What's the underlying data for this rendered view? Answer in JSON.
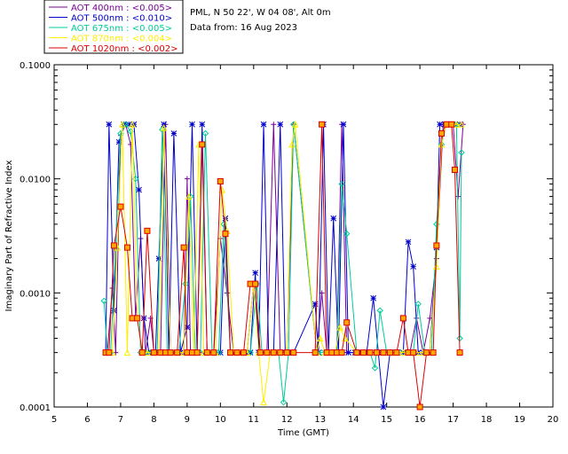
{
  "chart_data": {
    "type": "line",
    "yscale": "log",
    "title_lines": [
      "PML, N 50 22', W 04 08', Alt 0m",
      "Data from: 16 Aug 2023"
    ],
    "xlabel": "Time (GMT)",
    "ylabel": "Imaginary Part of Refractive Index",
    "xlim": [
      5,
      20
    ],
    "ylim": [
      0.0001,
      0.1
    ],
    "x_ticks": [
      5,
      6,
      7,
      8,
      9,
      10,
      11,
      12,
      13,
      14,
      15,
      16,
      17,
      18,
      19,
      20
    ],
    "x_tick_labels": [
      "5",
      "6",
      "7",
      "8",
      "9",
      "10",
      "11",
      "12",
      "13",
      "14",
      "15",
      "16",
      "17",
      "18",
      "19",
      "20"
    ],
    "y_ticks": [
      0.0001,
      0.001,
      0.01,
      0.1
    ],
    "y_tick_labels": [
      "0.0001",
      "0.0010",
      "0.0100",
      "0.1000"
    ],
    "series": [
      {
        "name": "AOT  400nm : <0.005>",
        "color": "#7a0099",
        "marker": "plus",
        "x": [
          6.6,
          6.75,
          6.85,
          7.0,
          7.15,
          7.3,
          7.45,
          7.6,
          7.75,
          7.9,
          8.0,
          8.2,
          8.35,
          8.5,
          8.7,
          8.9,
          9.0,
          9.1,
          9.2,
          9.35,
          9.5,
          9.65,
          9.8,
          10.0,
          10.2,
          10.4,
          10.6,
          10.8,
          11.0,
          11.2,
          11.4,
          11.6,
          11.8,
          12.0,
          12.2,
          12.9,
          13.05,
          13.2,
          13.35,
          13.5,
          13.65,
          13.8,
          14.1,
          14.3,
          14.5,
          14.7,
          14.9,
          15.1,
          15.3,
          15.5,
          15.7,
          15.9,
          16.1,
          16.3,
          16.5,
          16.7,
          16.85,
          17.0,
          17.15,
          17.3
        ],
        "y": [
          0.0003,
          0.0011,
          0.0003,
          0.024,
          0.03,
          0.02,
          0.0006,
          0.003,
          0.0003,
          0.0006,
          0.0003,
          0.0003,
          0.03,
          0.0003,
          0.0003,
          0.0003,
          0.01,
          0.0003,
          0.0003,
          0.0003,
          0.0003,
          0.0003,
          0.0003,
          0.003,
          0.001,
          0.0003,
          0.0003,
          0.0003,
          0.0012,
          0.0003,
          0.0003,
          0.03,
          0.0003,
          0.0003,
          0.03,
          0.0003,
          0.001,
          0.0003,
          0.0003,
          0.0003,
          0.03,
          0.0003,
          0.0003,
          0.0003,
          0.0003,
          0.0003,
          0.0003,
          0.0003,
          0.0003,
          0.0003,
          0.0003,
          0.0006,
          0.0003,
          0.0006,
          0.002,
          0.03,
          0.03,
          0.03,
          0.007,
          0.03
        ]
      },
      {
        "name": "AOT  500nm : <0.010>",
        "color": "#0000cc",
        "marker": "star",
        "x": [
          6.55,
          6.65,
          6.8,
          6.95,
          7.1,
          7.25,
          7.4,
          7.55,
          7.7,
          7.85,
          8.05,
          8.15,
          8.3,
          8.45,
          8.6,
          8.8,
          9.0,
          9.15,
          9.3,
          9.45,
          9.6,
          9.8,
          10.0,
          10.15,
          10.3,
          10.5,
          10.7,
          10.9,
          11.05,
          11.15,
          11.3,
          11.45,
          11.6,
          11.8,
          11.95,
          12.1,
          12.2,
          12.85,
          12.95,
          13.1,
          13.25,
          13.4,
          13.55,
          13.7,
          13.85,
          14.05,
          14.2,
          14.4,
          14.6,
          14.75,
          14.9,
          15.1,
          15.3,
          15.5,
          15.65,
          15.8,
          15.95,
          16.1,
          16.3,
          16.5,
          16.6,
          16.75,
          16.9,
          17.05,
          17.2
        ],
        "y": [
          0.0003,
          0.03,
          0.0007,
          0.021,
          0.03,
          0.03,
          0.03,
          0.008,
          0.0006,
          0.0003,
          0.0003,
          0.002,
          0.03,
          0.0003,
          0.025,
          0.0003,
          0.0005,
          0.03,
          0.0003,
          0.03,
          0.0003,
          0.0003,
          0.0003,
          0.0045,
          0.0003,
          0.0003,
          0.0003,
          0.0003,
          0.0015,
          0.0003,
          0.03,
          0.0003,
          0.0003,
          0.03,
          0.0003,
          0.0003,
          0.0003,
          0.0008,
          0.0003,
          0.03,
          0.0003,
          0.0045,
          0.0003,
          0.03,
          0.0003,
          0.0003,
          0.0003,
          0.0003,
          0.0009,
          0.0003,
          0.0001,
          0.0003,
          0.0003,
          0.0003,
          0.0028,
          0.0017,
          0.0003,
          0.0003,
          0.0003,
          0.0025,
          0.03,
          0.03,
          0.03,
          0.03,
          0.03
        ]
      },
      {
        "name": "AOT  675nm : <0.005>",
        "color": "#00cc99",
        "marker": "diamond",
        "x": [
          6.5,
          6.6,
          6.7,
          6.85,
          7.0,
          7.15,
          7.3,
          7.45,
          7.6,
          7.75,
          7.9,
          8.1,
          8.25,
          8.4,
          8.55,
          8.75,
          8.95,
          9.1,
          9.25,
          9.4,
          9.55,
          9.75,
          9.95,
          10.1,
          10.3,
          10.5,
          10.7,
          10.9,
          11.1,
          11.25,
          11.4,
          11.55,
          11.75,
          11.9,
          12.05,
          12.2,
          12.9,
          13.05,
          13.2,
          13.35,
          13.5,
          13.65,
          13.8,
          14.1,
          14.3,
          14.5,
          14.65,
          14.8,
          15.0,
          15.2,
          15.4,
          15.6,
          15.8,
          15.95,
          16.15,
          16.35,
          16.5,
          16.65,
          16.8,
          16.95,
          17.1,
          17.2,
          17.25
        ],
        "y": [
          0.00085,
          0.0003,
          0.0003,
          0.0025,
          0.025,
          0.03,
          0.026,
          0.01,
          0.0003,
          0.0003,
          0.0003,
          0.0003,
          0.027,
          0.0003,
          0.0003,
          0.0003,
          0.0012,
          0.007,
          0.0003,
          0.0003,
          0.025,
          0.0003,
          0.0003,
          0.004,
          0.0003,
          0.0003,
          0.0003,
          0.0003,
          0.0012,
          0.0003,
          0.0003,
          0.0003,
          0.0003,
          0.00011,
          0.0003,
          0.03,
          0.0003,
          0.0003,
          0.0003,
          0.0003,
          0.0003,
          0.009,
          0.0033,
          0.0003,
          0.0003,
          0.0003,
          0.00022,
          0.0007,
          0.0003,
          0.0003,
          0.0003,
          0.0003,
          0.0003,
          0.0008,
          0.0003,
          0.0003,
          0.004,
          0.02,
          0.03,
          0.03,
          0.03,
          0.0004,
          0.017
        ]
      },
      {
        "name": "AOT  870nm : <0.004>",
        "color": "#ffee00",
        "marker": "triangle",
        "x": [
          6.6,
          6.75,
          6.9,
          7.05,
          7.2,
          7.35,
          7.5,
          7.65,
          7.8,
          8.0,
          8.15,
          8.3,
          8.5,
          8.7,
          8.9,
          9.05,
          9.2,
          9.35,
          9.5,
          9.65,
          9.85,
          10.05,
          10.2,
          10.4,
          10.6,
          10.8,
          11.0,
          11.15,
          11.3,
          11.5,
          11.7,
          11.85,
          12.0,
          12.15,
          12.25,
          12.9,
          13.0,
          13.15,
          13.3,
          13.45,
          13.6,
          13.75,
          14.1,
          14.3,
          14.5,
          14.7,
          14.9,
          15.1,
          15.3,
          15.5,
          15.7,
          15.9,
          16.1,
          16.3,
          16.5,
          16.65,
          16.8,
          16.95,
          17.1,
          17.25
        ],
        "y": [
          0.0003,
          0.0003,
          0.0025,
          0.03,
          0.0003,
          0.03,
          0.0006,
          0.0003,
          0.0003,
          0.0003,
          0.0003,
          0.028,
          0.0003,
          0.0003,
          0.0003,
          0.007,
          0.0003,
          0.02,
          0.0003,
          0.0003,
          0.0003,
          0.008,
          0.0035,
          0.0003,
          0.0003,
          0.0003,
          0.0012,
          0.0003,
          0.00011,
          0.0003,
          0.0003,
          0.0003,
          0.0003,
          0.02,
          0.03,
          0.0003,
          0.0004,
          0.0003,
          0.0003,
          0.0003,
          0.0005,
          0.0004,
          0.0003,
          0.0003,
          0.0003,
          0.0003,
          0.0003,
          0.0003,
          0.0003,
          0.0003,
          0.0003,
          0.0003,
          0.0003,
          0.0003,
          0.0017,
          0.02,
          0.03,
          0.03,
          0.03,
          0.03
        ]
      },
      {
        "name": "AOT 1020nm : <0.002>",
        "color": "#dd0000",
        "marker": "square",
        "x": [
          6.55,
          6.65,
          6.8,
          7.0,
          7.2,
          7.35,
          7.5,
          7.65,
          7.8,
          8.0,
          8.2,
          8.35,
          8.5,
          8.7,
          8.9,
          9.0,
          9.15,
          9.3,
          9.45,
          9.6,
          9.8,
          10.0,
          10.15,
          10.3,
          10.5,
          10.7,
          10.9,
          11.05,
          11.2,
          11.4,
          11.6,
          11.8,
          12.0,
          12.2,
          12.85,
          13.05,
          13.2,
          13.35,
          13.5,
          13.65,
          13.8,
          14.1,
          14.3,
          14.5,
          14.7,
          14.9,
          15.1,
          15.3,
          15.5,
          15.65,
          15.8,
          16.0,
          16.2,
          16.4,
          16.5,
          16.65,
          16.8,
          16.95,
          17.05,
          17.2
        ],
        "y": [
          0.0003,
          0.0003,
          0.0026,
          0.0057,
          0.0025,
          0.0006,
          0.0006,
          0.0003,
          0.0035,
          0.0003,
          0.0003,
          0.0003,
          0.0003,
          0.0003,
          0.0025,
          0.0003,
          0.0003,
          0.0003,
          0.02,
          0.0003,
          0.0003,
          0.0095,
          0.0033,
          0.0003,
          0.0003,
          0.0003,
          0.0012,
          0.0012,
          0.0003,
          0.0003,
          0.0003,
          0.0003,
          0.0003,
          0.0003,
          0.0003,
          0.03,
          0.0003,
          0.0003,
          0.0003,
          0.0003,
          0.00055,
          0.0003,
          0.0003,
          0.0003,
          0.0003,
          0.0003,
          0.0003,
          0.0003,
          0.0006,
          0.0003,
          0.0003,
          0.0001,
          0.0003,
          0.0003,
          0.0026,
          0.025,
          0.03,
          0.03,
          0.012,
          0.0003
        ]
      }
    ]
  }
}
